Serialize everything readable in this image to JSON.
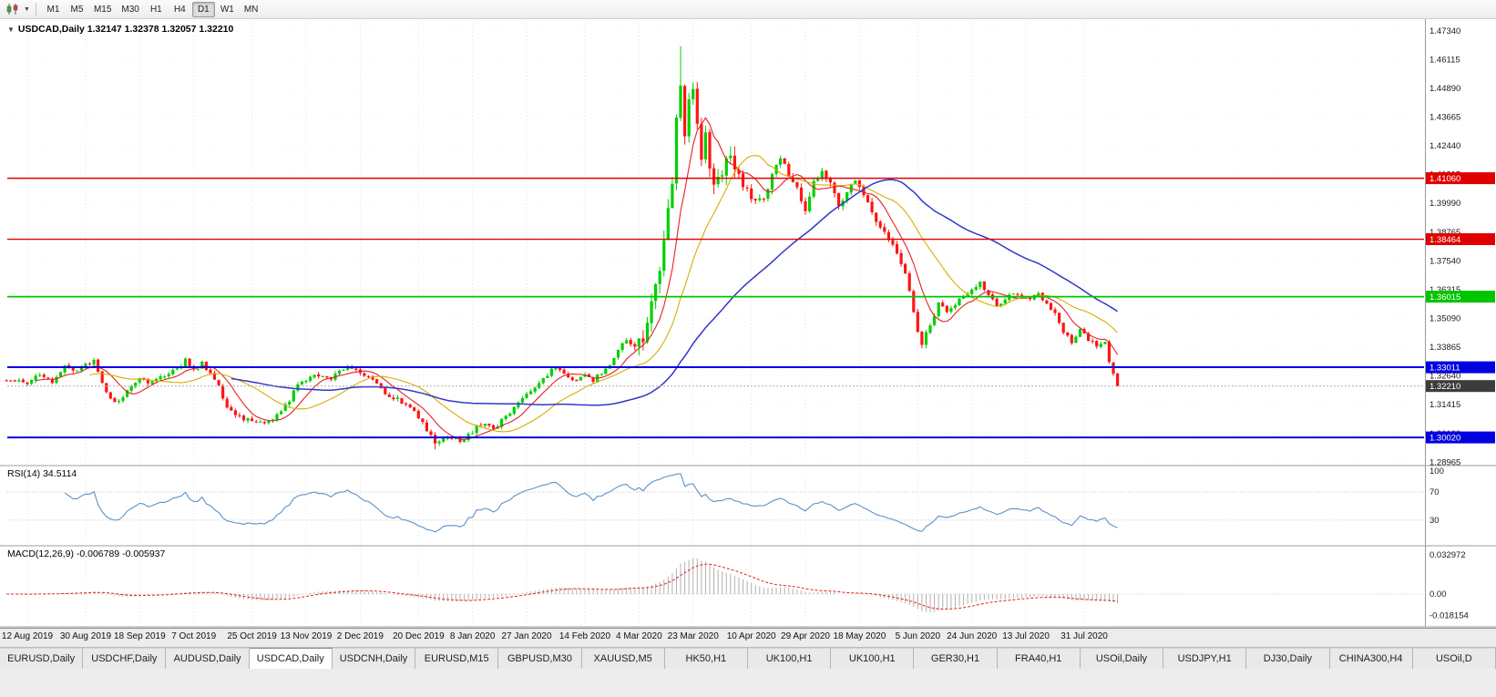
{
  "toolbar": {
    "timeframes": [
      {
        "label": "M1",
        "active": false
      },
      {
        "label": "M5",
        "active": false
      },
      {
        "label": "M15",
        "active": false
      },
      {
        "label": "M30",
        "active": false
      },
      {
        "label": "H1",
        "active": false
      },
      {
        "label": "H4",
        "active": false
      },
      {
        "label": "D1",
        "active": true
      },
      {
        "label": "W1",
        "active": false
      },
      {
        "label": "MN",
        "active": false
      }
    ]
  },
  "chart": {
    "title_line": "USDCAD,Daily 1.32147 1.32378 1.32057 1.32210",
    "rsi_label": "RSI(14) 34.5114",
    "macd_label": "MACD(12,26,9) -0.006789 -0.005937"
  },
  "chart_data": {
    "type": "candlestick",
    "symbol": "USDCAD",
    "timeframe": "Daily",
    "last_ohlc": {
      "open": "1.32147",
      "high": "1.32378",
      "low": "1.32057",
      "close": "1.32210"
    },
    "candle_colors": {
      "up": "#00d000",
      "down": "#ff1414"
    },
    "price_axis_ticks": [
      "1.47340",
      "1.46115",
      "1.44890",
      "1.43665",
      "1.42440",
      "1.41215",
      "1.39990",
      "1.38765",
      "1.37540",
      "1.36315",
      "1.35090",
      "1.33865",
      "1.32640",
      "1.31415",
      "1.30190",
      "1.28965"
    ],
    "levels": [
      {
        "price": 1.4106,
        "label": "1.41060",
        "color": "#e00000",
        "width": 1.4
      },
      {
        "price": 1.38464,
        "label": "1.38464",
        "color": "#e00000",
        "width": 1.4
      },
      {
        "price": 1.36015,
        "label": "1.36015",
        "color": "#00c400",
        "width": 1.8
      },
      {
        "price": 1.33011,
        "label": "1.33011",
        "color": "#0000e0",
        "width": 2
      },
      {
        "price": 1.3002,
        "label": "1.30020",
        "color": "#0000e0",
        "width": 2
      }
    ],
    "current_price": {
      "price": 1.3221,
      "label": "1.32210",
      "bg": "#3c3c3c"
    },
    "dates": [
      {
        "label": "12 Aug 2019",
        "day": 0
      },
      {
        "label": "30 Aug 2019",
        "day": 14
      },
      {
        "label": "18 Sep 2019",
        "day": 27
      },
      {
        "label": "7 Oct 2019",
        "day": 40
      },
      {
        "label": "25 Oct 2019",
        "day": 54
      },
      {
        "label": "13 Nov 2019",
        "day": 67
      },
      {
        "label": "2 Dec 2019",
        "day": 80
      },
      {
        "label": "20 Dec 2019",
        "day": 94
      },
      {
        "label": "8 Jan 2020",
        "day": 107
      },
      {
        "label": "27 Jan 2020",
        "day": 120
      },
      {
        "label": "14 Feb 2020",
        "day": 134
      },
      {
        "label": "4 Mar 2020",
        "day": 147
      },
      {
        "label": "23 Mar 2020",
        "day": 160
      },
      {
        "label": "10 Apr 2020",
        "day": 174
      },
      {
        "label": "29 Apr 2020",
        "day": 187
      },
      {
        "label": "18 May 2020",
        "day": 200
      },
      {
        "label": "5 Jun 2020",
        "day": 214
      },
      {
        "label": "24 Jun 2020",
        "day": 227
      },
      {
        "label": "13 Jul 2020",
        "day": 240
      },
      {
        "label": "31 Jul 2020",
        "day": 254
      }
    ],
    "price_path": [
      [
        -5,
        1.325
      ],
      [
        0,
        1.3235
      ],
      [
        3,
        1.327
      ],
      [
        6,
        1.324
      ],
      [
        9,
        1.33
      ],
      [
        12,
        1.3285
      ],
      [
        14,
        1.3315
      ],
      [
        16,
        1.333
      ],
      [
        18,
        1.324
      ],
      [
        20,
        1.3165
      ],
      [
        22,
        1.315
      ],
      [
        24,
        1.3205
      ],
      [
        27,
        1.325
      ],
      [
        30,
        1.3235
      ],
      [
        33,
        1.3265
      ],
      [
        36,
        1.329
      ],
      [
        38,
        1.333
      ],
      [
        40,
        1.3285
      ],
      [
        42,
        1.332
      ],
      [
        44,
        1.327
      ],
      [
        46,
        1.322
      ],
      [
        48,
        1.313
      ],
      [
        51,
        1.3085
      ],
      [
        54,
        1.307
      ],
      [
        57,
        1.306
      ],
      [
        60,
        1.3095
      ],
      [
        63,
        1.316
      ],
      [
        65,
        1.323
      ],
      [
        67,
        1.3235
      ],
      [
        69,
        1.327
      ],
      [
        71,
        1.3255
      ],
      [
        73,
        1.3245
      ],
      [
        75,
        1.329
      ],
      [
        77,
        1.33
      ],
      [
        79,
        1.3285
      ],
      [
        81,
        1.327
      ],
      [
        83,
        1.325
      ],
      [
        85,
        1.321
      ],
      [
        87,
        1.317
      ],
      [
        89,
        1.3165
      ],
      [
        91,
        1.314
      ],
      [
        93,
        1.3115
      ],
      [
        95,
        1.306
      ],
      [
        97,
        1.301
      ],
      [
        98,
        1.2975
      ],
      [
        100,
        1.299
      ],
      [
        102,
        1.3005
      ],
      [
        104,
        1.2985
      ],
      [
        106,
        1.301
      ],
      [
        108,
        1.3045
      ],
      [
        110,
        1.3055
      ],
      [
        112,
        1.304
      ],
      [
        114,
        1.3075
      ],
      [
        116,
        1.311
      ],
      [
        118,
        1.315
      ],
      [
        120,
        1.3185
      ],
      [
        122,
        1.322
      ],
      [
        124,
        1.3255
      ],
      [
        126,
        1.329
      ],
      [
        128,
        1.3295
      ],
      [
        130,
        1.326
      ],
      [
        132,
        1.3245
      ],
      [
        134,
        1.3265
      ],
      [
        136,
        1.3245
      ],
      [
        138,
        1.328
      ],
      [
        140,
        1.331
      ],
      [
        142,
        1.337
      ],
      [
        144,
        1.342
      ],
      [
        146,
        1.3395
      ],
      [
        148,
        1.343
      ],
      [
        150,
        1.356
      ],
      [
        152,
        1.37
      ],
      [
        154,
        1.396
      ],
      [
        155,
        1.41
      ],
      [
        156,
        1.435
      ],
      [
        157,
        1.451
      ],
      [
        158,
        1.426
      ],
      [
        159,
        1.442
      ],
      [
        160,
        1.446
      ],
      [
        161,
        1.431
      ],
      [
        162,
        1.419
      ],
      [
        163,
        1.429
      ],
      [
        164,
        1.416
      ],
      [
        165,
        1.406
      ],
      [
        167,
        1.413
      ],
      [
        169,
        1.421
      ],
      [
        171,
        1.411
      ],
      [
        173,
        1.405
      ],
      [
        175,
        1.4
      ],
      [
        177,
        1.403
      ],
      [
        179,
        1.411
      ],
      [
        181,
        1.419
      ],
      [
        183,
        1.412
      ],
      [
        185,
        1.408
      ],
      [
        187,
        1.396
      ],
      [
        189,
        1.408
      ],
      [
        191,
        1.414
      ],
      [
        193,
        1.408
      ],
      [
        195,
        1.399
      ],
      [
        197,
        1.405
      ],
      [
        199,
        1.41
      ],
      [
        201,
        1.404
      ],
      [
        203,
        1.396
      ],
      [
        205,
        1.39
      ],
      [
        207,
        1.385
      ],
      [
        209,
        1.379
      ],
      [
        211,
        1.37
      ],
      [
        213,
        1.354
      ],
      [
        214,
        1.346
      ],
      [
        215,
        1.34
      ],
      [
        217,
        1.348
      ],
      [
        219,
        1.357
      ],
      [
        221,
        1.354
      ],
      [
        223,
        1.357
      ],
      [
        225,
        1.36
      ],
      [
        227,
        1.363
      ],
      [
        229,
        1.366
      ],
      [
        231,
        1.361
      ],
      [
        233,
        1.356
      ],
      [
        235,
        1.359
      ],
      [
        237,
        1.362
      ],
      [
        239,
        1.36
      ],
      [
        241,
        1.359
      ],
      [
        243,
        1.3615
      ],
      [
        245,
        1.3575
      ],
      [
        247,
        1.3525
      ],
      [
        249,
        1.3445
      ],
      [
        251,
        1.341
      ],
      [
        253,
        1.346
      ],
      [
        255,
        1.342
      ],
      [
        257,
        1.339
      ],
      [
        259,
        1.341
      ],
      [
        260,
        1.333
      ],
      [
        261,
        1.327
      ],
      [
        262,
        1.3221
      ]
    ],
    "extremes": {
      "high": {
        "day": 157,
        "price": 1.4668
      },
      "low": {
        "day": 98,
        "price": 1.2951
      }
    },
    "moving_averages": [
      {
        "period": 8,
        "color": "#e42222",
        "width": 1.1
      },
      {
        "period": 21,
        "color": "#d8ae00",
        "width": 1.1
      },
      {
        "period": 55,
        "color": "#3038c8",
        "width": 1.5
      }
    ],
    "rsi": {
      "period": 14,
      "color": "#5b92c8",
      "value": "34.5114",
      "levels": [
        {
          "v": 100,
          "label": "100"
        },
        {
          "v": 70,
          "label": "70"
        },
        {
          "v": 30,
          "label": "30"
        }
      ]
    },
    "macd": {
      "fast": 12,
      "slow": 26,
      "signal": 9,
      "hist_color": "#b0b0b0",
      "signal_color": "#e02020",
      "values": "-0.006789 -0.005937",
      "axis_labels": [
        {
          "v": 0.032972,
          "label": "0.032972"
        },
        {
          "v": 0,
          "label": "0.00"
        },
        {
          "v": -0.018154,
          "label": "-0.018154"
        }
      ]
    }
  },
  "tabs": [
    {
      "label": "EURUSD,Daily",
      "active": false
    },
    {
      "label": "USDCHF,Daily",
      "active": false
    },
    {
      "label": "AUDUSD,Daily",
      "active": false
    },
    {
      "label": "USDCAD,Daily",
      "active": true
    },
    {
      "label": "USDCNH,Daily",
      "active": false
    },
    {
      "label": "EURUSD,M15",
      "active": false
    },
    {
      "label": "GBPUSD,M30",
      "active": false
    },
    {
      "label": "XAUUSD,M5",
      "active": false
    },
    {
      "label": "HK50,H1",
      "active": false
    },
    {
      "label": "UK100,H1",
      "active": false
    },
    {
      "label": "UK100,H1",
      "active": false
    },
    {
      "label": "GER30,H1",
      "active": false
    },
    {
      "label": "FRA40,H1",
      "active": false
    },
    {
      "label": "USOil,Daily",
      "active": false
    },
    {
      "label": "USDJPY,H1",
      "active": false
    },
    {
      "label": "DJ30,Daily",
      "active": false
    },
    {
      "label": "CHINA300,H4",
      "active": false
    },
    {
      "label": "USOil,D",
      "active": false
    }
  ]
}
